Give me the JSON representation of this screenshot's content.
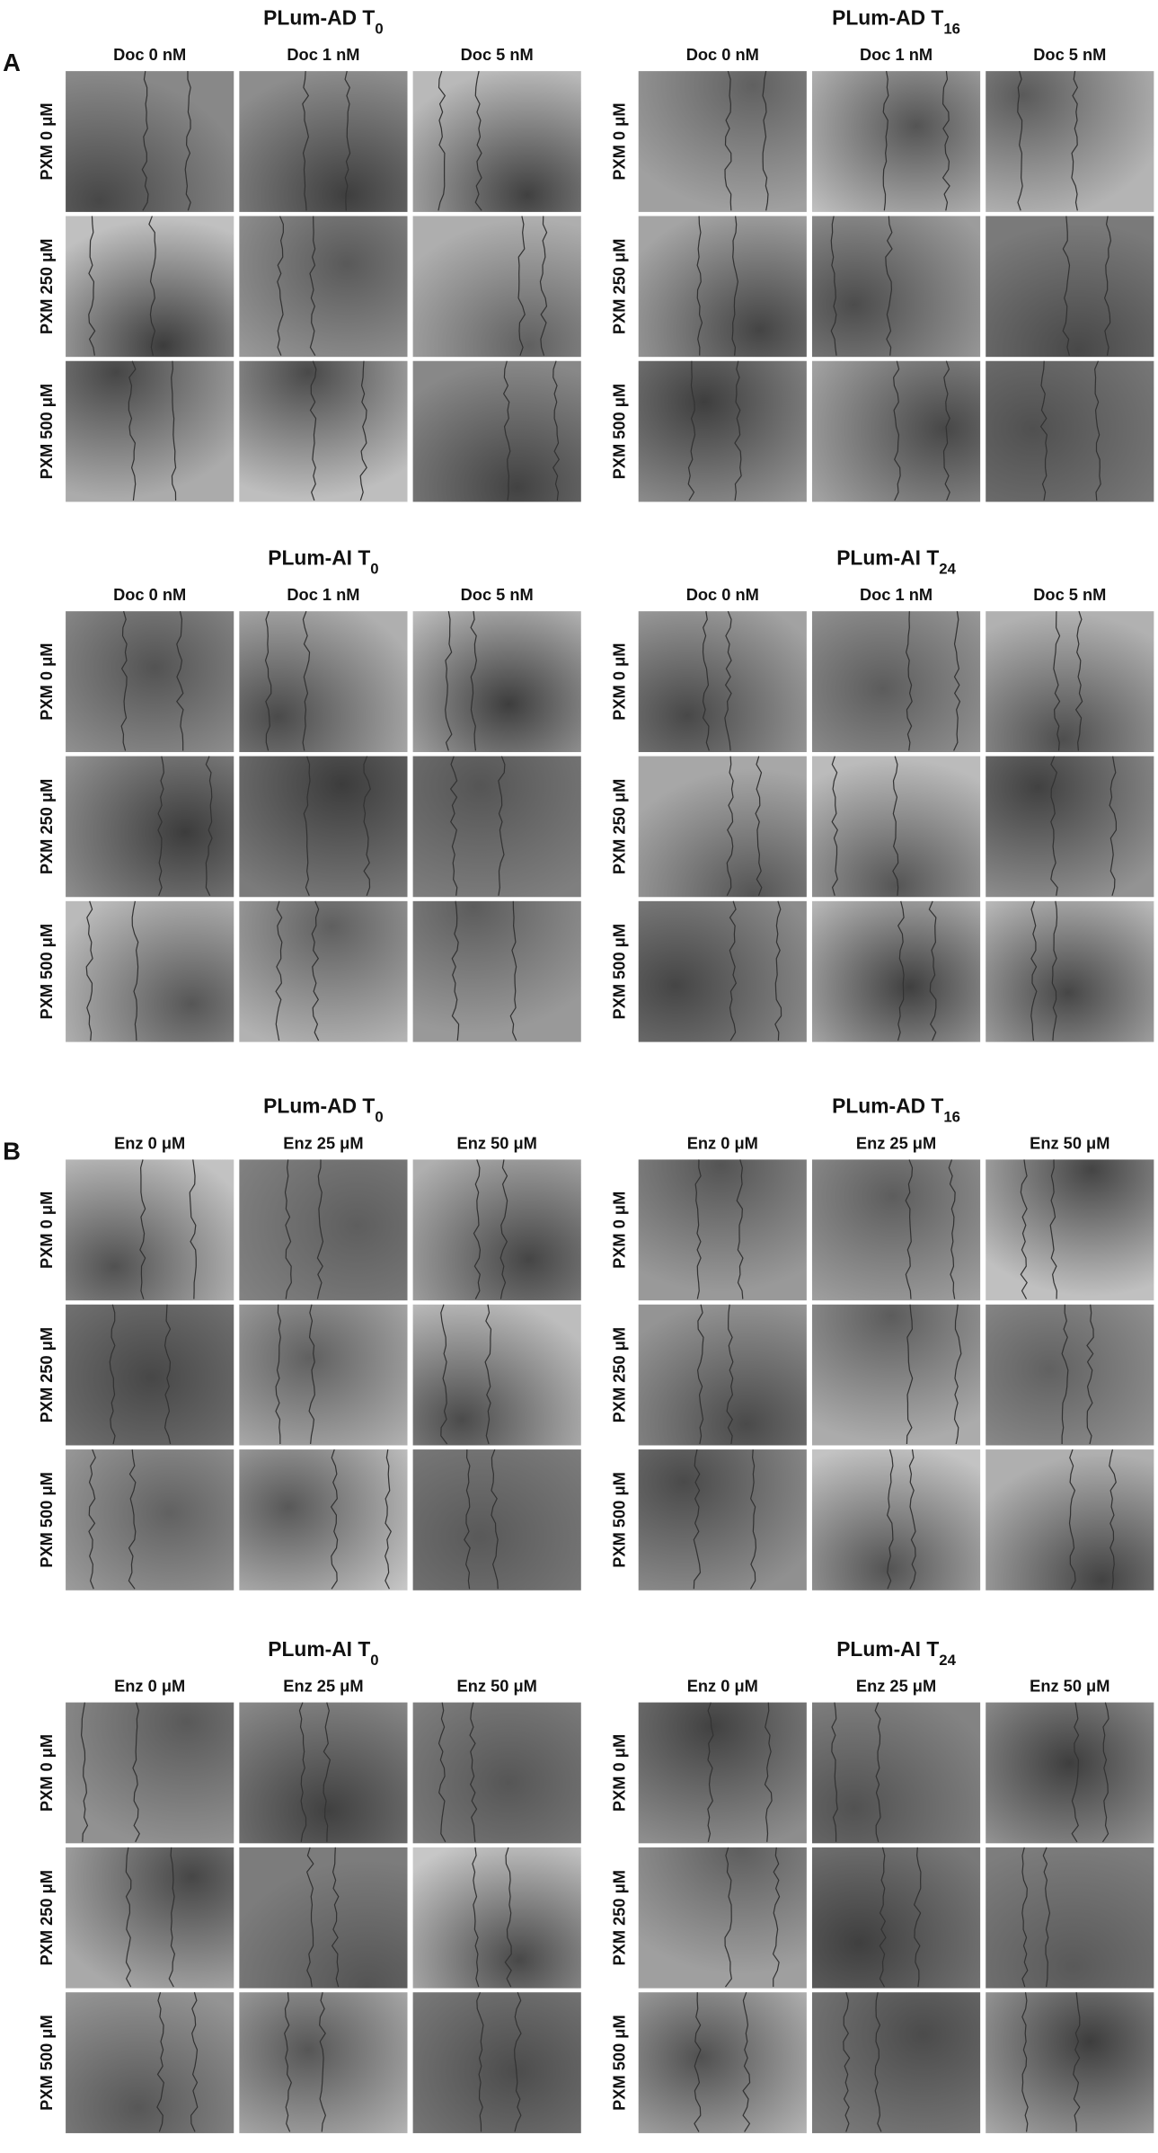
{
  "sections": [
    {
      "label": "A",
      "panels": [
        {
          "title": "PLum-AD T",
          "subscript": "0",
          "columns": [
            "Doc 0 nM",
            "Doc 1 nM",
            "Doc 5 nM"
          ],
          "rows": [
            "PXM 0 μM",
            "PXM 250 μM",
            "PXM 500 μM"
          ]
        },
        {
          "title": "PLum-AD T",
          "subscript": "16",
          "columns": [
            "Doc 0 nM",
            "Doc 1 nM",
            "Doc 5 nM"
          ],
          "rows": [
            "PXM 0 μM",
            "PXM 250 μM",
            "PXM 500 μM"
          ]
        },
        {
          "title": "PLum-AI T",
          "subscript": "0",
          "columns": [
            "Doc 0 nM",
            "Doc 1 nM",
            "Doc 5 nM"
          ],
          "rows": [
            "PXM 0 μM",
            "PXM 250 μM",
            "PXM 500 μM"
          ]
        },
        {
          "title": "PLum-AI T",
          "subscript": "24",
          "columns": [
            "Doc 0 nM",
            "Doc 1 nM",
            "Doc 5 nM"
          ],
          "rows": [
            "PXM 0 μM",
            "PXM 250 μM",
            "PXM 500 μM"
          ]
        }
      ]
    },
    {
      "label": "B",
      "panels": [
        {
          "title": "PLum-AD T",
          "subscript": "0",
          "columns": [
            "Enz 0 μM",
            "Enz 25 μM",
            "Enz 50 μM"
          ],
          "rows": [
            "PXM 0 μM",
            "PXM 250 μM",
            "PXM 500 μM"
          ]
        },
        {
          "title": "PLum-AD T",
          "subscript": "16",
          "columns": [
            "Enz 0 μM",
            "Enz 25 μM",
            "Enz 50 μM"
          ],
          "rows": [
            "PXM 0 μM",
            "PXM 250 μM",
            "PXM 500 μM"
          ]
        },
        {
          "title": "PLum-AI T",
          "subscript": "0",
          "columns": [
            "Enz 0 μM",
            "Enz 25 μM",
            "Enz 50 μM"
          ],
          "rows": [
            "PXM 0 μM",
            "PXM 250 μM",
            "PXM 500 μM"
          ]
        },
        {
          "title": "PLum-AI T",
          "subscript": "24",
          "columns": [
            "Enz 0 μM",
            "Enz 25 μM",
            "Enz 50 μM"
          ],
          "rows": [
            "PXM 0 μM",
            "PXM 250 μM",
            "PXM 500 μM"
          ]
        }
      ]
    }
  ]
}
